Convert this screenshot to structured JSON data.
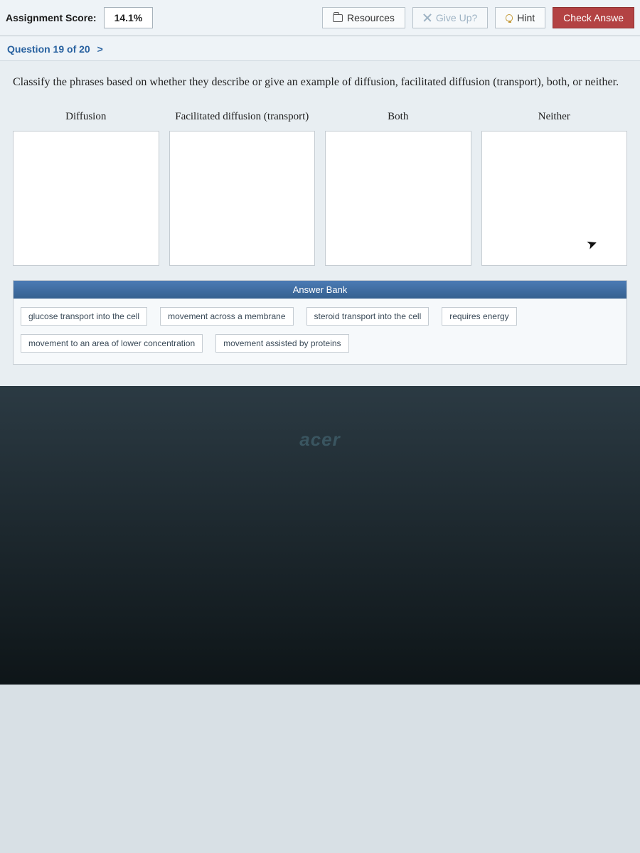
{
  "toolbar": {
    "score_label": "Assignment Score:",
    "score_value": "14.1%",
    "resources_label": "Resources",
    "give_up_label": "Give Up?",
    "hint_label": "Hint",
    "check_label": "Check Answe"
  },
  "question_nav": {
    "label": "Question 19 of 20",
    "chevron": ">"
  },
  "prompt": "Classify the phrases based on whether they describe or give an example of diffusion, facilitated diffusion (transport), both, or neither.",
  "bins": [
    {
      "label": "Diffusion"
    },
    {
      "label": "Facilitated diffusion (transport)"
    },
    {
      "label": "Both"
    },
    {
      "label": "Neither"
    }
  ],
  "answer_bank": {
    "title": "Answer Bank",
    "items": [
      "glucose transport into the cell",
      "movement across a membrane",
      "steroid transport into the cell",
      "requires energy",
      "movement to an area of lower concentration",
      "movement assisted by proteins"
    ]
  },
  "logo": "acer",
  "colors": {
    "page_bg": "#e8eef2",
    "accent_blue": "#2962a0",
    "primary_btn": "#b34243",
    "bank_header": "#3d6ea5"
  }
}
